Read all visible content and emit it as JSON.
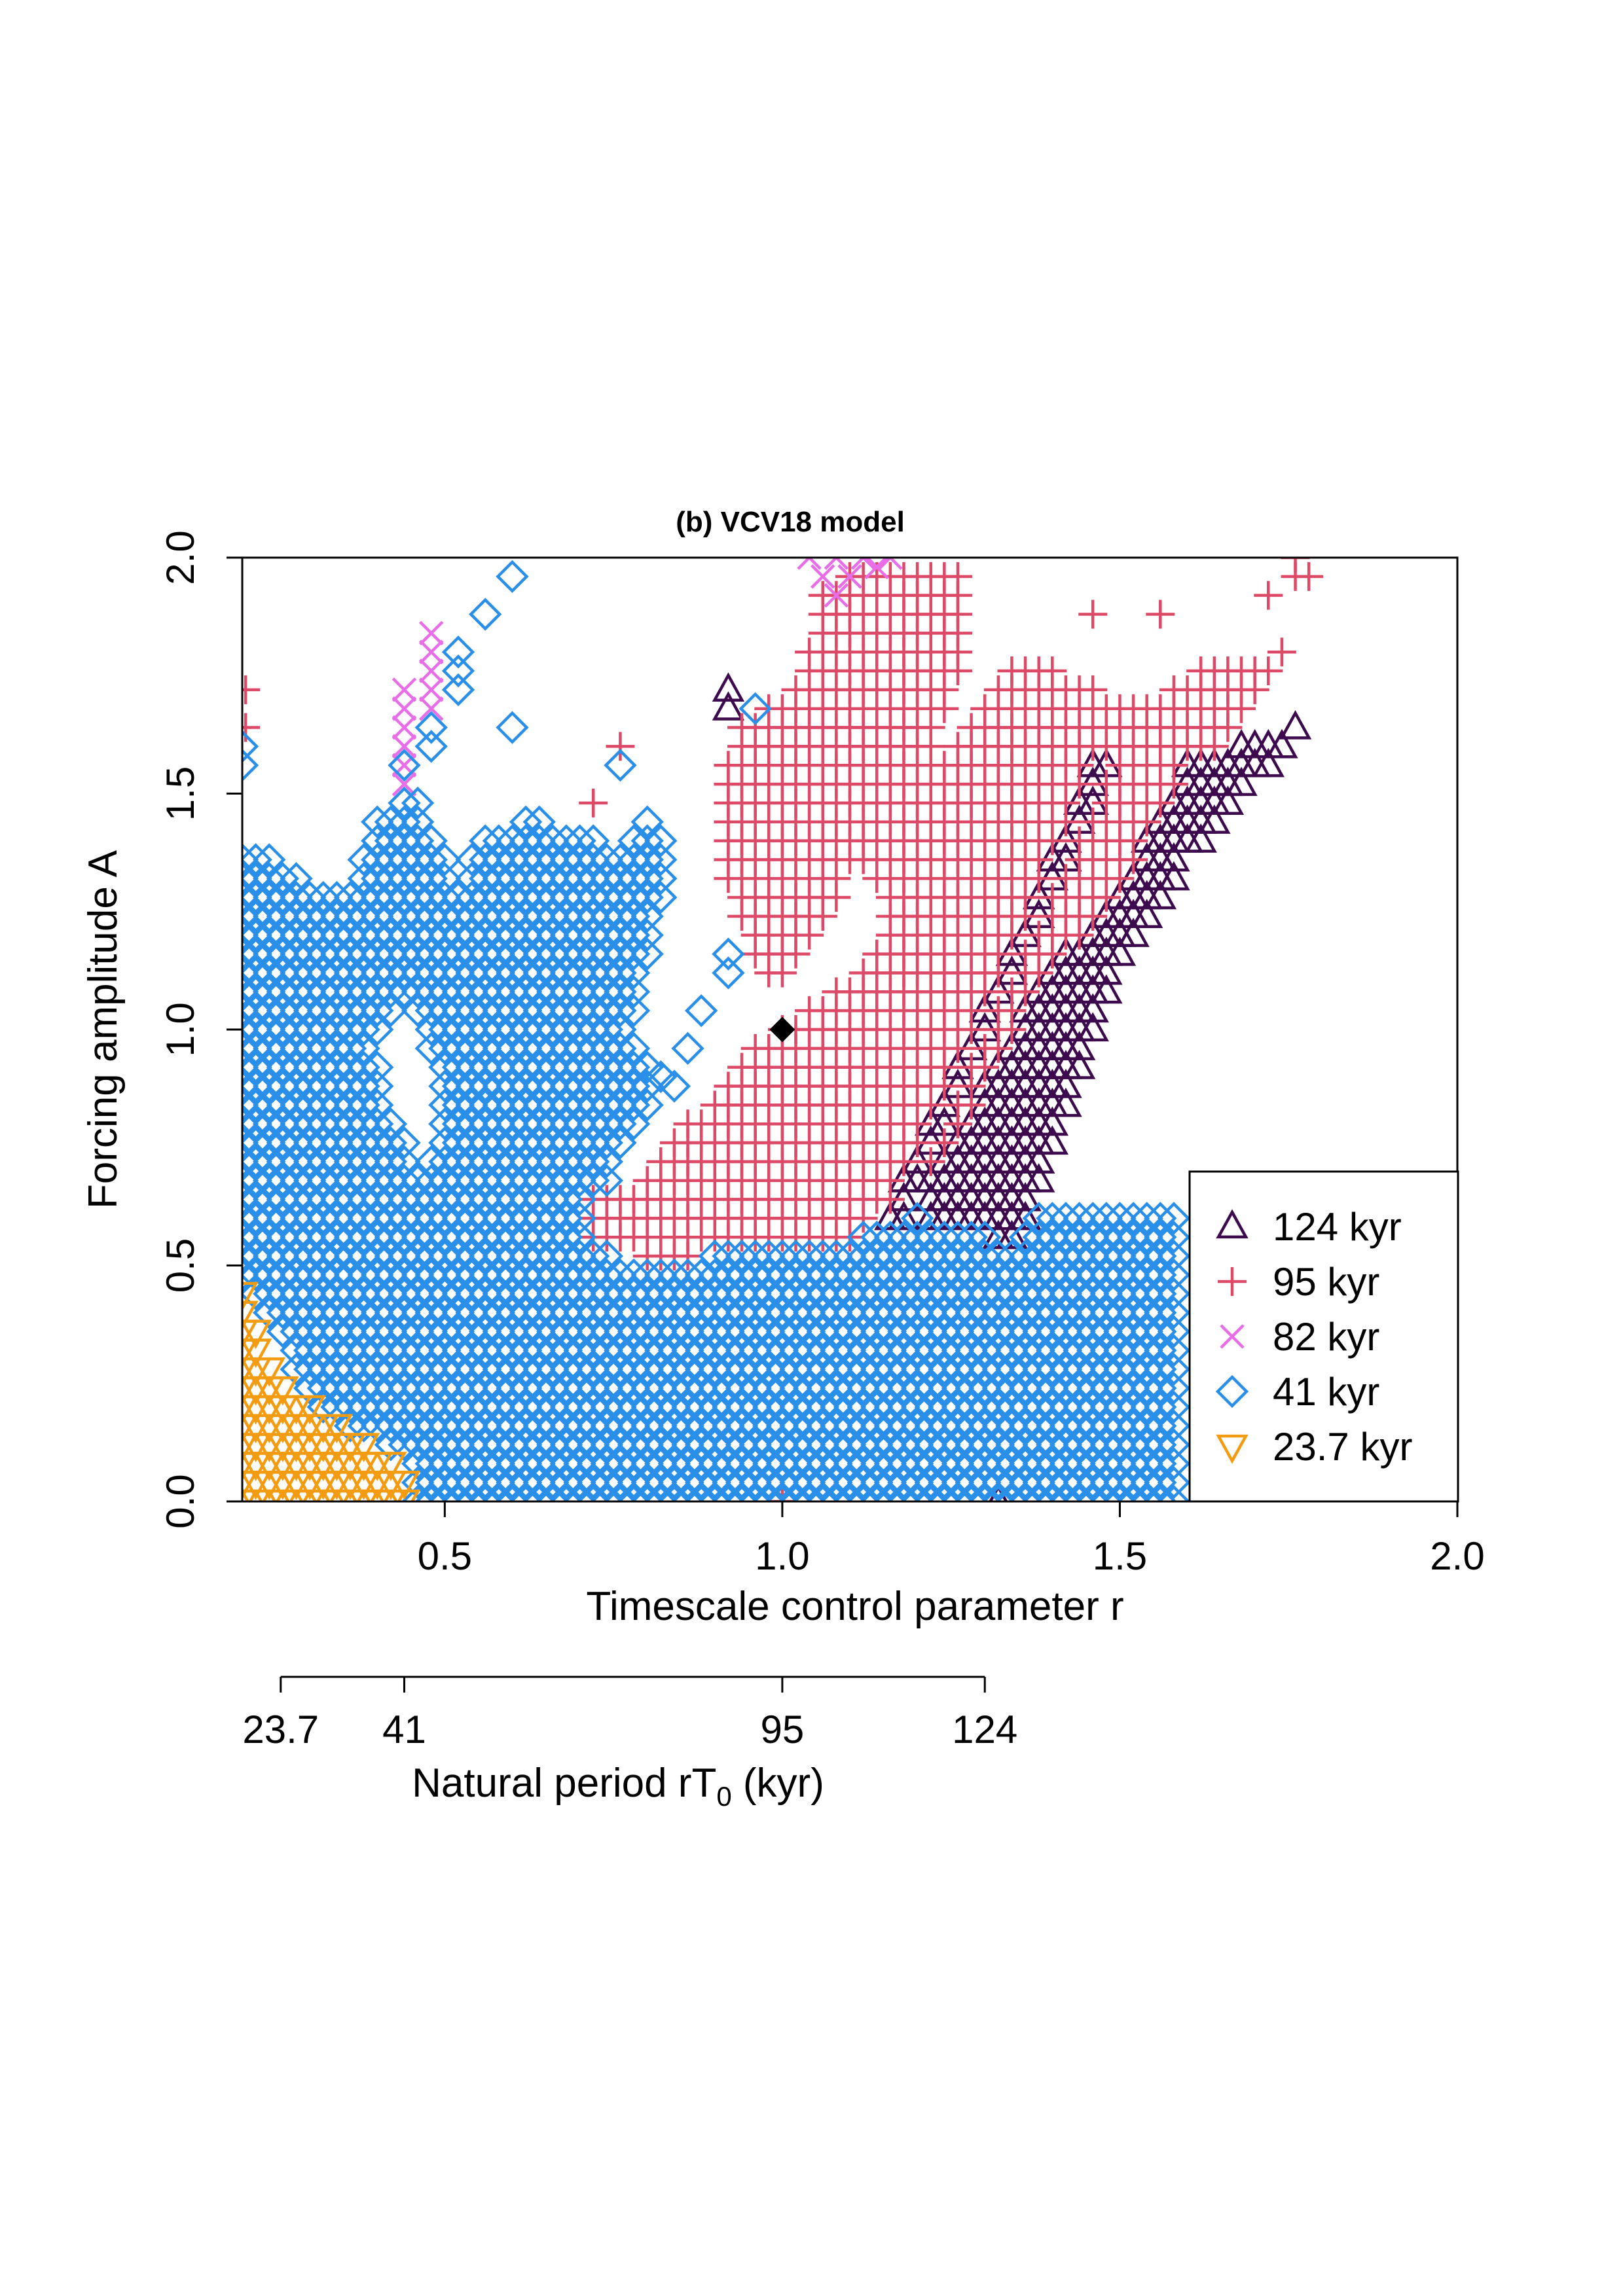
{
  "chart_data": {
    "type": "scatter",
    "title": "(b) VCV18 model",
    "xlabel": "Timescale control parameter r",
    "ylabel": "Forcing amplitude A",
    "xlim": [
      0.2,
      2.0
    ],
    "ylim": [
      0.0,
      2.0
    ],
    "x_ticks": [
      "0.5",
      "1.0",
      "1.5",
      "2.0"
    ],
    "y_ticks": [
      "0.0",
      "0.5",
      "1.0",
      "1.5",
      "2.0"
    ],
    "grid": false,
    "legend_position": "bottom-right",
    "secondary_axis": {
      "label_main": "Natural period rT",
      "label_sub": "0",
      "label_tail": " (kyr)",
      "ticks": [
        {
          "label": "23.7",
          "r": 0.257
        },
        {
          "label": "41",
          "r": 0.44
        },
        {
          "label": "95",
          "r": 1.0
        },
        {
          "label": "124",
          "r": 1.3
        }
      ]
    },
    "reference_point": {
      "x": 1.0,
      "y": 1.0
    },
    "grid_step": {
      "dx": 0.02,
      "dy": 0.04
    },
    "series": [
      {
        "name": "124 kyr",
        "marker": "triangle-up",
        "color": "#3d0a4e",
        "regions": [
          {
            "poly": [
              [
                1.14,
                0.58
              ],
              [
                1.18,
                0.58
              ],
              [
                1.42,
                1.2
              ],
              [
                1.46,
                1.2
              ],
              [
                1.6,
                1.56
              ],
              [
                1.78,
                1.66
              ],
              [
                1.6,
                1.36
              ],
              [
                1.5,
                1.12
              ],
              [
                1.35,
                0.55
              ],
              [
                1.26,
                0.58
              ],
              [
                1.16,
                0.63
              ]
            ]
          },
          {
            "poly": [
              [
                1.155,
                0.58
              ],
              [
                1.175,
                0.58
              ],
              [
                1.335,
                1.1
              ],
              [
                1.5,
                1.6
              ],
              [
                1.46,
                1.56
              ],
              [
                1.33,
                1.14
              ],
              [
                1.15,
                0.61
              ]
            ]
          }
        ],
        "points": [
          {
            "x": 0.92,
            "y": 1.68
          },
          {
            "x": 0.92,
            "y": 1.72
          },
          {
            "x": 1.32,
            "y": 0.0
          }
        ]
      },
      {
        "name": "95 kyr",
        "marker": "plus",
        "color": "#dd4a68",
        "regions": [
          {
            "poly": [
              [
                0.72,
                0.55
              ],
              [
                0.72,
                0.66
              ],
              [
                0.78,
                0.66
              ],
              [
                0.86,
                0.8
              ],
              [
                0.96,
                0.96
              ],
              [
                1.14,
                1.16
              ],
              [
                1.16,
                1.26
              ],
              [
                1.12,
                1.36
              ],
              [
                1.1,
                1.48
              ],
              [
                1.16,
                1.5
              ],
              [
                1.22,
                1.56
              ],
              [
                1.26,
                1.62
              ],
              [
                1.36,
                1.8
              ],
              [
                1.42,
                1.76
              ],
              [
                1.54,
                1.68
              ],
              [
                1.64,
                1.78
              ],
              [
                1.74,
                1.8
              ],
              [
                1.76,
                1.84
              ],
              [
                1.68,
                1.66
              ],
              [
                1.56,
                1.4
              ],
              [
                1.46,
                1.22
              ],
              [
                1.36,
                0.92
              ],
              [
                1.26,
                0.66
              ],
              [
                1.14,
                0.62
              ],
              [
                1.1,
                0.55
              ],
              [
                0.98,
                0.53
              ],
              [
                0.88,
                0.52
              ],
              [
                0.8,
                0.52
              ]
            ]
          },
          {
            "poly": [
              [
                0.96,
                1.05
              ],
              [
                1.0,
                1.1
              ],
              [
                0.96,
                1.14
              ],
              [
                0.92,
                1.3
              ],
              [
                0.9,
                1.5
              ],
              [
                0.94,
                1.66
              ],
              [
                1.02,
                1.72
              ],
              [
                1.06,
                1.94
              ],
              [
                1.14,
                2.0
              ],
              [
                1.28,
                2.0
              ],
              [
                1.28,
                1.82
              ],
              [
                1.22,
                1.56
              ],
              [
                1.16,
                1.46
              ],
              [
                1.1,
                1.32
              ],
              [
                1.04,
                1.16
              ]
            ]
          }
        ],
        "points": [
          {
            "x": 0.205,
            "y": 1.72
          },
          {
            "x": 0.205,
            "y": 1.64
          },
          {
            "x": 0.76,
            "y": 1.6
          },
          {
            "x": 0.72,
            "y": 1.48
          },
          {
            "x": 1.46,
            "y": 1.88
          },
          {
            "x": 1.56,
            "y": 1.88
          },
          {
            "x": 1.72,
            "y": 1.92
          },
          {
            "x": 1.76,
            "y": 1.96
          },
          {
            "x": 1.76,
            "y": 2.0
          },
          {
            "x": 1.78,
            "y": 1.96
          },
          {
            "x": 1.0,
            "y": 0.0
          }
        ]
      },
      {
        "name": "82 kyr",
        "marker": "cross",
        "color": "#e86ee8",
        "points": [
          {
            "x": 0.44,
            "y": 1.72
          },
          {
            "x": 0.44,
            "y": 1.68
          },
          {
            "x": 0.44,
            "y": 1.64
          },
          {
            "x": 0.44,
            "y": 1.6
          },
          {
            "x": 0.44,
            "y": 1.56
          },
          {
            "x": 0.44,
            "y": 1.52
          },
          {
            "x": 0.48,
            "y": 1.84
          },
          {
            "x": 0.48,
            "y": 1.8
          },
          {
            "x": 0.48,
            "y": 1.76
          },
          {
            "x": 0.48,
            "y": 1.72
          },
          {
            "x": 0.48,
            "y": 1.68
          },
          {
            "x": 1.04,
            "y": 2.0
          },
          {
            "x": 1.06,
            "y": 1.96
          },
          {
            "x": 1.08,
            "y": 1.92
          },
          {
            "x": 1.08,
            "y": 2.0
          },
          {
            "x": 1.1,
            "y": 1.96
          },
          {
            "x": 1.12,
            "y": 2.0
          },
          {
            "x": 1.14,
            "y": 1.98
          },
          {
            "x": 1.16,
            "y": 2.0
          }
        ]
      },
      {
        "name": "41 kyr",
        "marker": "diamond",
        "color": "#2a8fe8",
        "regions": [
          {
            "poly": [
              [
                0.2,
                0.0
              ],
              [
                0.2,
                1.38
              ],
              [
                0.26,
                1.36
              ],
              [
                0.32,
                1.3
              ],
              [
                0.36,
                1.28
              ],
              [
                0.4,
                1.44
              ],
              [
                0.44,
                1.52
              ],
              [
                0.48,
                1.44
              ],
              [
                0.52,
                1.3
              ],
              [
                0.56,
                1.44
              ],
              [
                0.6,
                1.4
              ],
              [
                0.64,
                1.48
              ],
              [
                0.68,
                1.4
              ],
              [
                0.72,
                1.44
              ],
              [
                0.76,
                1.36
              ],
              [
                0.8,
                1.46
              ],
              [
                0.84,
                1.4
              ],
              [
                0.78,
                1.0
              ],
              [
                0.82,
                0.86
              ],
              [
                0.76,
                0.72
              ],
              [
                0.74,
                0.6
              ],
              [
                0.76,
                0.52
              ],
              [
                0.84,
                0.5
              ],
              [
                0.96,
                0.54
              ],
              [
                1.1,
                0.55
              ],
              [
                1.2,
                0.6
              ],
              [
                1.36,
                0.62
              ],
              [
                1.58,
                0.62
              ],
              [
                1.6,
                0.0
              ]
            ]
          },
          {
            "poly": [
              [
                0.44,
                0.0
              ],
              [
                0.44,
                0.04
              ],
              [
                0.46,
                0.08
              ],
              [
                0.5,
                0.04
              ],
              [
                0.52,
                0.0
              ]
            ]
          }
        ],
        "holes": [
          {
            "poly": [
              [
                0.4,
                0.96
              ],
              [
                0.44,
                1.08
              ],
              [
                0.48,
                0.96
              ],
              [
                0.5,
                0.8
              ],
              [
                0.46,
                0.7
              ],
              [
                0.42,
                0.84
              ]
            ]
          },
          {
            "poly": [
              [
                0.2,
                0.0
              ],
              [
                0.2,
                0.45
              ],
              [
                0.24,
                0.38
              ],
              [
                0.3,
                0.22
              ],
              [
                0.38,
                0.14
              ],
              [
                0.46,
                0.08
              ],
              [
                0.46,
                0.0
              ]
            ]
          },
          {
            "poly": [
              [
                1.38,
                0.62
              ],
              [
                1.6,
                0.62
              ],
              [
                1.6,
                0.7
              ],
              [
                1.38,
                0.7
              ]
            ]
          }
        ],
        "points": [
          {
            "x": 0.2,
            "y": 1.56
          },
          {
            "x": 0.2,
            "y": 1.6
          },
          {
            "x": 0.44,
            "y": 1.56
          },
          {
            "x": 0.46,
            "y": 1.48
          },
          {
            "x": 0.48,
            "y": 1.6
          },
          {
            "x": 0.48,
            "y": 1.64
          },
          {
            "x": 0.52,
            "y": 1.72
          },
          {
            "x": 0.52,
            "y": 1.76
          },
          {
            "x": 0.52,
            "y": 1.8
          },
          {
            "x": 0.56,
            "y": 1.88
          },
          {
            "x": 0.6,
            "y": 1.96
          },
          {
            "x": 0.6,
            "y": 1.64
          },
          {
            "x": 0.76,
            "y": 1.56
          },
          {
            "x": 0.86,
            "y": 0.96
          },
          {
            "x": 0.88,
            "y": 1.04
          },
          {
            "x": 0.92,
            "y": 1.12
          },
          {
            "x": 0.92,
            "y": 1.16
          },
          {
            "x": 0.96,
            "y": 1.68
          },
          {
            "x": 0.84,
            "y": 0.88
          },
          {
            "x": 0.82,
            "y": 0.9
          }
        ]
      },
      {
        "name": "23.7 kyr",
        "marker": "triangle-down",
        "color": "#f39c12",
        "regions": [
          {
            "poly": [
              [
                0.2,
                0.0
              ],
              [
                0.2,
                0.46
              ],
              [
                0.22,
                0.4
              ],
              [
                0.24,
                0.32
              ],
              [
                0.26,
                0.26
              ],
              [
                0.3,
                0.22
              ],
              [
                0.34,
                0.18
              ],
              [
                0.38,
                0.14
              ],
              [
                0.42,
                0.1
              ],
              [
                0.46,
                0.04
              ],
              [
                0.46,
                0.0
              ]
            ]
          }
        ]
      }
    ]
  }
}
